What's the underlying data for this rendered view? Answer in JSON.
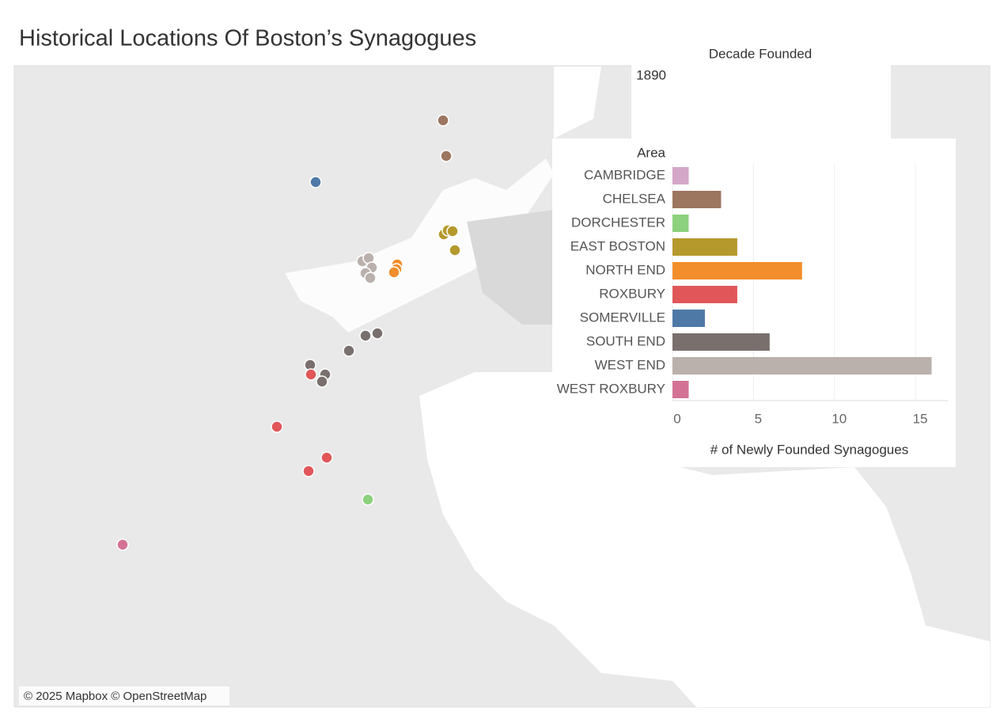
{
  "dashboard_title": "Historical Locations Of Boston’s Synagogues",
  "map_attribution": "© 2025 Mapbox © OpenStreetMap",
  "filter": {
    "title": "Decade Founded",
    "value": "1890"
  },
  "chart_data": {
    "type": "bar",
    "orientation": "horizontal",
    "y_label": "Area",
    "x_label": "# of Newly Founded Synagogues",
    "categories": [
      "CAMBRIDGE",
      "CHELSEA",
      "DORCHESTER",
      "EAST BOSTON",
      "NORTH END",
      "ROXBURY",
      "SOMERVILLE",
      "SOUTH END",
      "WEST END",
      "WEST ROXBURY"
    ],
    "values": [
      1,
      3,
      1,
      4,
      8,
      4,
      2,
      6,
      16,
      1
    ],
    "colors": [
      "#d4a6c8",
      "#9d7660",
      "#8cd17d",
      "#b6992d",
      "#f28e2b",
      "#e15759",
      "#4e79a7",
      "#79706e",
      "#bab0ac",
      "#d37295"
    ],
    "xlim": [
      0,
      17
    ],
    "xticks": [
      0,
      5,
      10,
      15
    ],
    "grid": true
  }
}
